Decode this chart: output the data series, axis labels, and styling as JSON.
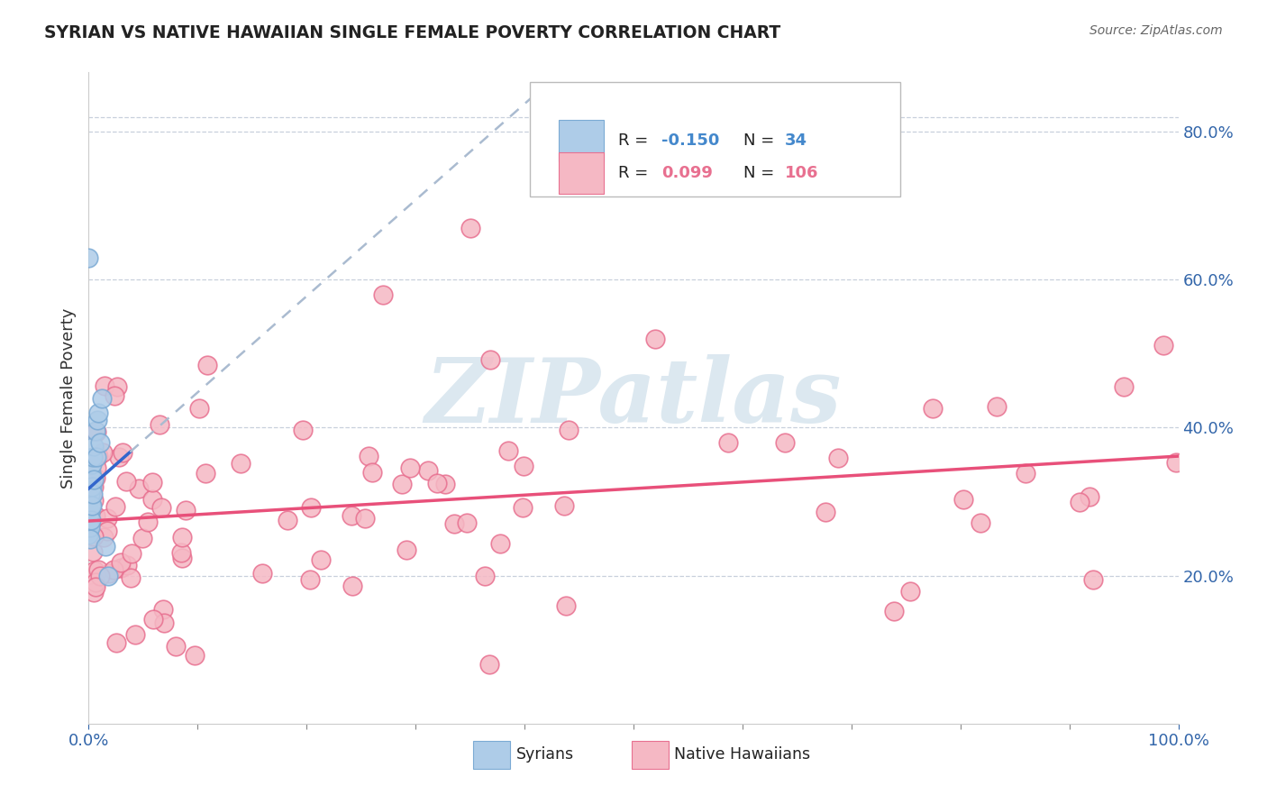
{
  "title": "SYRIAN VS NATIVE HAWAIIAN SINGLE FEMALE POVERTY CORRELATION CHART",
  "source": "Source: ZipAtlas.com",
  "ylabel": "Single Female Poverty",
  "yright_labels": [
    "20.0%",
    "40.0%",
    "60.0%",
    "80.0%"
  ],
  "yright_values": [
    0.2,
    0.4,
    0.6,
    0.8
  ],
  "color_syrian_fill": "#aecce8",
  "color_native_fill": "#f5b8c4",
  "color_syrian_edge": "#7baad4",
  "color_native_edge": "#e87090",
  "color_trend_syrian_solid": "#3366cc",
  "color_trend_syrian_dashed": "#aabbd0",
  "color_trend_native": "#e8507a",
  "R_syrian": -0.15,
  "N_syrian": 34,
  "R_native": 0.099,
  "N_native": 106,
  "xlim": [
    0.0,
    1.0
  ],
  "ylim": [
    0.0,
    0.88
  ],
  "background_color": "#ffffff",
  "watermark_text": "ZIPatlas",
  "watermark_color": "#dce8f0",
  "grid_color": "#c8d0dc",
  "top_line_y": 0.82,
  "legend_R1": "-0.150",
  "legend_N1": "34",
  "legend_R2": "0.099",
  "legend_N2": "106",
  "legend_color1": "#4488cc",
  "legend_color2": "#e87090",
  "bottom_label1": "Syrians",
  "bottom_label2": "Native Hawaiians"
}
